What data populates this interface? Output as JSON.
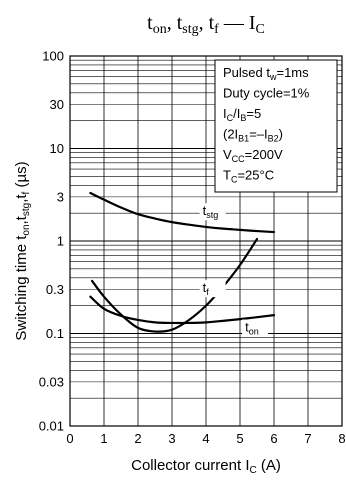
{
  "chart_data": {
    "type": "line",
    "title": {
      "parts": [
        {
          "t": "t"
        },
        {
          "t": "on",
          "sub": true
        },
        {
          "t": ", t"
        },
        {
          "t": "stg",
          "sub": true
        },
        {
          "t": ", t"
        },
        {
          "t": "f",
          "sub": true
        },
        {
          "t": " — I"
        },
        {
          "t": "C",
          "sub": true
        }
      ]
    },
    "xlabel": {
      "parts": [
        {
          "t": "Collector current   I"
        },
        {
          "t": "C",
          "sub": true
        },
        {
          "t": "   (A)"
        }
      ]
    },
    "ylabel": {
      "parts": [
        {
          "t": "Switching time   t"
        },
        {
          "t": "on",
          "sub": true
        },
        {
          "t": ",t"
        },
        {
          "t": "stg",
          "sub": true
        },
        {
          "t": ",t"
        },
        {
          "t": "f",
          "sub": true
        },
        {
          "t": "   (µs)"
        }
      ]
    },
    "x_scale": "linear",
    "y_scale": "log",
    "xlim": [
      0,
      8
    ],
    "ylim": [
      0.01,
      100
    ],
    "x_ticks": [
      0,
      1,
      2,
      3,
      4,
      5,
      6,
      7,
      8
    ],
    "x_tick_labels": [
      "0",
      "1",
      "2",
      "3",
      "4",
      "5",
      "6",
      "7",
      "8"
    ],
    "y_ticks": [
      0.01,
      0.03,
      0.1,
      0.3,
      1,
      3,
      10,
      30,
      100
    ],
    "y_tick_labels": [
      "0.01",
      "0.03",
      "0.1",
      "0.3",
      "1",
      "3",
      "10",
      "30",
      "100"
    ],
    "grid": true,
    "conditions": [
      {
        "parts": [
          {
            "t": "Pulsed t"
          },
          {
            "t": "w",
            "sub": true
          },
          {
            "t": "=1ms"
          }
        ]
      },
      {
        "parts": [
          {
            "t": "Duty cycle=1%"
          }
        ]
      },
      {
        "parts": [
          {
            "t": "I"
          },
          {
            "t": "C",
            "sub": true
          },
          {
            "t": "/I"
          },
          {
            "t": "B",
            "sub": true
          },
          {
            "t": "=5"
          }
        ]
      },
      {
        "parts": [
          {
            "t": "(2I"
          },
          {
            "t": "B1",
            "sub": true
          },
          {
            "t": "=–I"
          },
          {
            "t": "B2",
            "sub": true
          },
          {
            "t": ")"
          }
        ]
      },
      {
        "parts": [
          {
            "t": "V"
          },
          {
            "t": "CC",
            "sub": true
          },
          {
            "t": "=200V"
          }
        ]
      },
      {
        "parts": [
          {
            "t": "T"
          },
          {
            "t": "C",
            "sub": true
          },
          {
            "t": "=25°C"
          }
        ]
      }
    ],
    "series": [
      {
        "name": "tstg",
        "label_parts": [
          {
            "t": "t"
          },
          {
            "t": "stg",
            "sub": true
          }
        ],
        "label_at": [
          3.9,
          1.9
        ],
        "x": [
          0.6,
          1.0,
          1.5,
          2.0,
          2.5,
          3.0,
          3.5,
          4.0,
          4.5,
          5.0,
          5.5,
          6.0
        ],
        "y": [
          3.3,
          2.8,
          2.3,
          1.95,
          1.75,
          1.6,
          1.5,
          1.42,
          1.36,
          1.32,
          1.28,
          1.25
        ]
      },
      {
        "name": "tf",
        "label_parts": [
          {
            "t": "t"
          },
          {
            "t": "f",
            "sub": true
          }
        ],
        "label_at": [
          3.9,
          0.28
        ],
        "x": [
          0.65,
          1.0,
          1.5,
          2.0,
          2.5,
          3.0,
          3.5,
          4.0,
          4.5,
          5.0,
          5.5
        ],
        "y": [
          0.37,
          0.25,
          0.16,
          0.115,
          0.105,
          0.11,
          0.14,
          0.2,
          0.32,
          0.55,
          1.05
        ]
      },
      {
        "name": "ton",
        "label_parts": [
          {
            "t": "t"
          },
          {
            "t": "on",
            "sub": true
          }
        ],
        "label_at": [
          5.15,
          0.105
        ],
        "x": [
          0.6,
          1.0,
          1.5,
          2.0,
          2.5,
          3.0,
          3.5,
          4.0,
          4.5,
          5.0,
          5.5,
          6.0
        ],
        "y": [
          0.25,
          0.185,
          0.155,
          0.14,
          0.132,
          0.13,
          0.13,
          0.132,
          0.137,
          0.143,
          0.15,
          0.158
        ]
      }
    ]
  }
}
